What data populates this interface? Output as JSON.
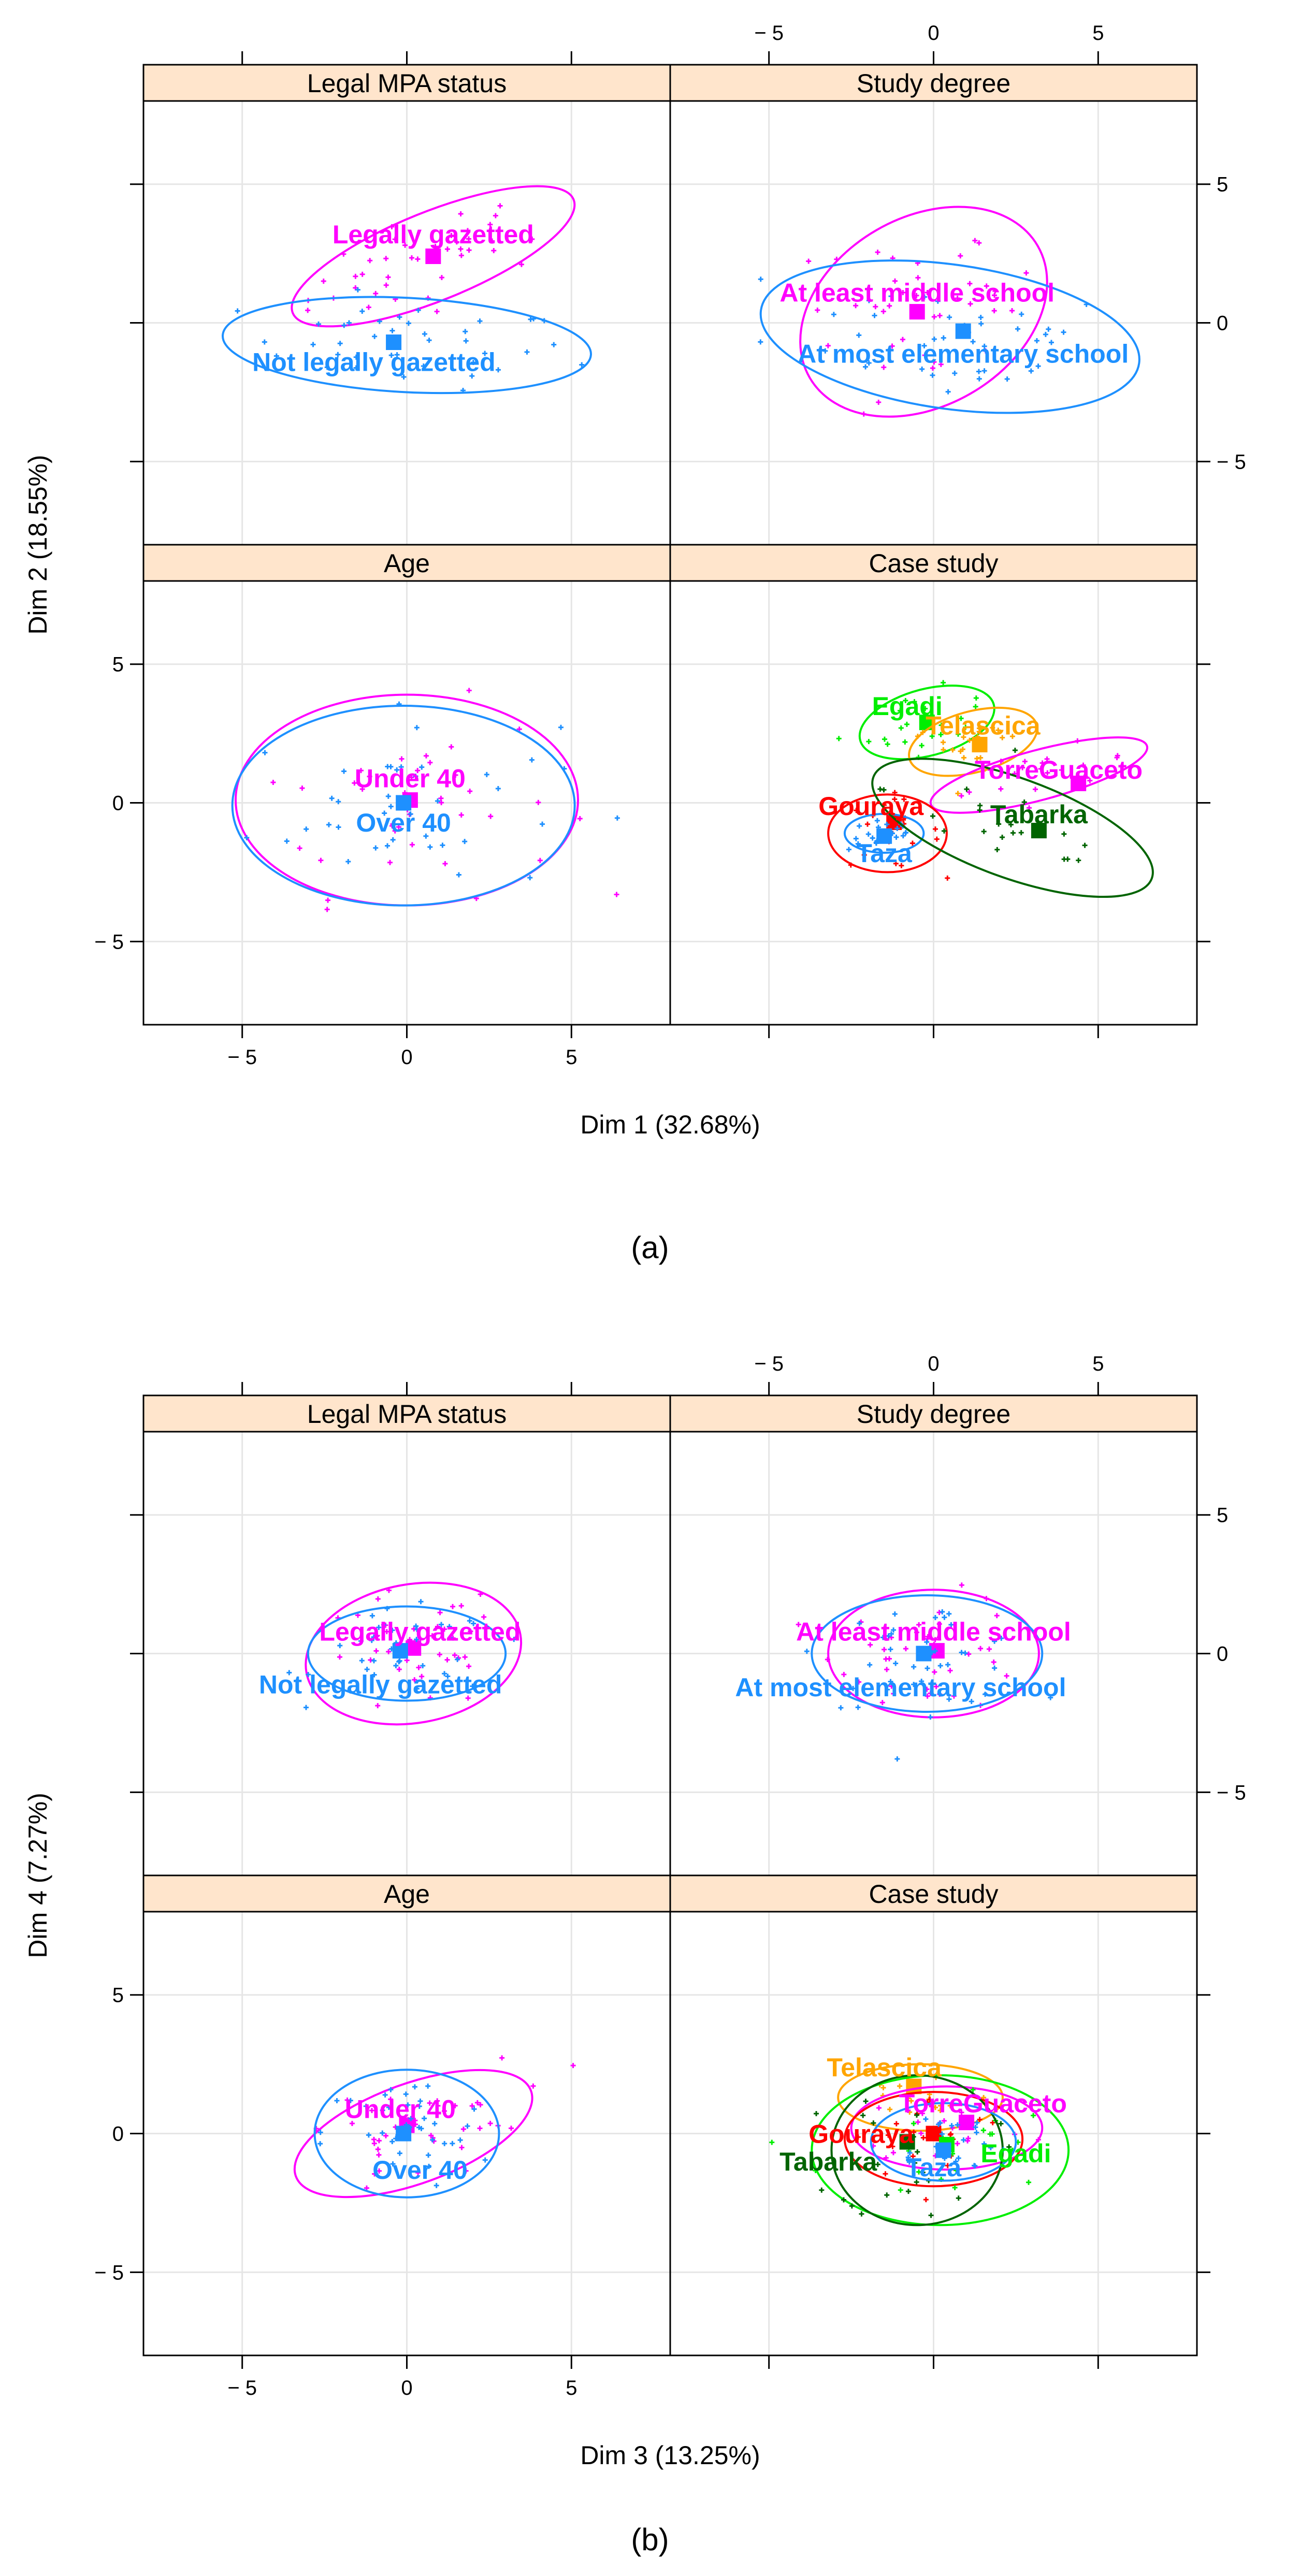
{
  "colors": {
    "blue": "#1E90FF",
    "magenta": "#FF00FF",
    "red": "#FF0000",
    "green": "#00EE00",
    "orange": "#FFA500",
    "darkgreen": "#006400",
    "strip": "#FFE5CC",
    "grid": "#E6E6E6",
    "axis": "#000000"
  },
  "chart_data": [
    {
      "type": "scatter",
      "panel_caption": "(a)",
      "xlabel": "Dim 1 (32.68%)",
      "ylabel": "Dim 2 (18.55%)",
      "xlim": [
        -8,
        8
      ],
      "ylim": [
        -8,
        8
      ],
      "ticks": [
        -5,
        0,
        5
      ],
      "tick_labels": [
        "− 5",
        "0",
        "5"
      ],
      "grid": true,
      "layout": "2x2",
      "facets": [
        {
          "title": "Legal MPA status",
          "position": "top-left",
          "categories": [
            {
              "name": "Legally gazetted",
              "color": "#FF00FF",
              "centroid": [
                0.8,
                2.4
              ],
              "label_at": [
                0.8,
                3.2
              ],
              "ellipse": {
                "cx": 0.8,
                "cy": 2.4,
                "rx": 4.6,
                "ry": 1.6,
                "angle": 22
              }
            },
            {
              "name": "Not legally gazetted",
              "color": "#1E90FF",
              "centroid": [
                -0.4,
                -0.7
              ],
              "label_at": [
                -1.0,
                -1.4
              ],
              "ellipse": {
                "cx": 0.0,
                "cy": -0.8,
                "rx": 5.6,
                "ry": 1.7,
                "angle": -3
              }
            }
          ]
        },
        {
          "title": "Study degree",
          "position": "top-right",
          "categories": [
            {
              "name": "At least middle school",
              "color": "#FF00FF",
              "centroid": [
                -0.5,
                0.4
              ],
              "label_at": [
                -0.5,
                1.1
              ],
              "ellipse": {
                "cx": -0.3,
                "cy": 0.4,
                "rx": 4.0,
                "ry": 3.4,
                "angle": 30
              }
            },
            {
              "name": "At most elementary school",
              "color": "#1E90FF",
              "centroid": [
                0.9,
                -0.3
              ],
              "label_at": [
                0.9,
                -1.1
              ],
              "ellipse": {
                "cx": 0.5,
                "cy": -0.5,
                "rx": 5.8,
                "ry": 2.6,
                "angle": -8
              }
            }
          ]
        },
        {
          "title": "Age",
          "position": "bottom-left",
          "categories": [
            {
              "name": "Under 40",
              "color": "#FF00FF",
              "centroid": [
                0.1,
                0.1
              ],
              "label_at": [
                0.1,
                0.9
              ],
              "ellipse": {
                "cx": 0.0,
                "cy": 0.1,
                "rx": 5.2,
                "ry": 3.8,
                "angle": 0
              }
            },
            {
              "name": "Over 40",
              "color": "#1E90FF",
              "centroid": [
                -0.1,
                0.0
              ],
              "label_at": [
                -0.1,
                -0.7
              ],
              "ellipse": {
                "cx": -0.1,
                "cy": -0.1,
                "rx": 5.2,
                "ry": 3.6,
                "angle": 0
              }
            }
          ]
        },
        {
          "title": "Case study",
          "position": "bottom-right",
          "categories": [
            {
              "name": "Egadi",
              "color": "#00EE00",
              "centroid": [
                -0.2,
                2.9
              ],
              "label_at": [
                -0.8,
                3.5
              ],
              "ellipse": {
                "cx": -0.2,
                "cy": 2.9,
                "rx": 2.1,
                "ry": 1.2,
                "angle": 15
              }
            },
            {
              "name": "Telascica",
              "color": "#FFA500",
              "centroid": [
                1.4,
                2.1
              ],
              "label_at": [
                1.5,
                2.8
              ],
              "ellipse": {
                "cx": 1.2,
                "cy": 2.2,
                "rx": 2.0,
                "ry": 1.1,
                "angle": 15
              }
            },
            {
              "name": "TorreGuaceto",
              "color": "#FF00FF",
              "centroid": [
                4.4,
                0.7
              ],
              "label_at": [
                3.8,
                1.2
              ],
              "ellipse": {
                "cx": 3.2,
                "cy": 1.0,
                "rx": 3.4,
                "ry": 0.9,
                "angle": 15
              }
            },
            {
              "name": "Gouraya",
              "color": "#FF0000",
              "centroid": [
                -1.2,
                -0.7
              ],
              "label_at": [
                -1.9,
                -0.1
              ],
              "ellipse": {
                "cx": -1.4,
                "cy": -1.1,
                "rx": 1.8,
                "ry": 1.4,
                "angle": 0
              }
            },
            {
              "name": "Taza",
              "color": "#1E90FF",
              "centroid": [
                -1.5,
                -1.2
              ],
              "label_at": [
                -1.5,
                -1.8
              ],
              "ellipse": {
                "cx": -1.5,
                "cy": -1.1,
                "rx": 1.2,
                "ry": 0.7,
                "angle": 0
              }
            },
            {
              "name": "Tabarka",
              "color": "#006400",
              "centroid": [
                3.2,
                -1.0
              ],
              "label_at": [
                3.2,
                -0.4
              ],
              "ellipse": {
                "cx": 2.4,
                "cy": -0.9,
                "rx": 4.5,
                "ry": 1.8,
                "angle": -20
              }
            }
          ]
        }
      ]
    },
    {
      "type": "scatter",
      "panel_caption": "(b)",
      "xlabel": "Dim 3 (13.25%)",
      "ylabel": "Dim 4 (7.27%)",
      "xlim": [
        -8,
        8
      ],
      "ylim": [
        -8,
        8
      ],
      "ticks": [
        -5,
        0,
        5
      ],
      "tick_labels": [
        "− 5",
        "0",
        "5"
      ],
      "grid": true,
      "layout": "2x2",
      "facets": [
        {
          "title": "Legal MPA status",
          "position": "top-left",
          "categories": [
            {
              "name": "Legally gazetted",
              "color": "#FF00FF",
              "centroid": [
                0.2,
                0.2
              ],
              "label_at": [
                0.4,
                0.8
              ],
              "ellipse": {
                "cx": 0.2,
                "cy": 0.0,
                "rx": 3.3,
                "ry": 2.5,
                "angle": 10
              }
            },
            {
              "name": "Not legally gazetted",
              "color": "#1E90FF",
              "centroid": [
                -0.2,
                0.1
              ],
              "label_at": [
                -0.8,
                -1.1
              ],
              "ellipse": {
                "cx": 0.0,
                "cy": 0.0,
                "rx": 3.0,
                "ry": 1.7,
                "angle": 0
              }
            }
          ]
        },
        {
          "title": "Study degree",
          "position": "top-right",
          "categories": [
            {
              "name": "At least middle school",
              "color": "#FF00FF",
              "centroid": [
                0.1,
                0.1
              ],
              "label_at": [
                0.0,
                0.8
              ],
              "ellipse": {
                "cx": 0.0,
                "cy": 0.0,
                "rx": 3.2,
                "ry": 2.3,
                "angle": 0
              }
            },
            {
              "name": "At most elementary school",
              "color": "#1E90FF",
              "centroid": [
                -0.3,
                0.0
              ],
              "label_at": [
                -1.0,
                -1.2
              ],
              "ellipse": {
                "cx": -0.2,
                "cy": 0.0,
                "rx": 3.5,
                "ry": 2.1,
                "angle": 0
              }
            }
          ]
        },
        {
          "title": "Age",
          "position": "bottom-left",
          "categories": [
            {
              "name": "Under 40",
              "color": "#FF00FF",
              "centroid": [
                0.0,
                0.3
              ],
              "label_at": [
                -0.2,
                0.9
              ],
              "ellipse": {
                "cx": 0.2,
                "cy": 0.0,
                "rx": 3.8,
                "ry": 1.8,
                "angle": 20
              }
            },
            {
              "name": "Over 40",
              "color": "#1E90FF",
              "centroid": [
                -0.1,
                0.0
              ],
              "label_at": [
                0.4,
                -1.3
              ],
              "ellipse": {
                "cx": 0.0,
                "cy": 0.0,
                "rx": 2.8,
                "ry": 2.3,
                "angle": 0
              }
            }
          ]
        },
        {
          "title": "Case study",
          "position": "bottom-right",
          "categories": [
            {
              "name": "Telascica",
              "color": "#FFA500",
              "centroid": [
                -0.6,
                1.7
              ],
              "label_at": [
                -1.5,
                2.4
              ],
              "ellipse": {
                "cx": -0.4,
                "cy": 1.3,
                "rx": 2.5,
                "ry": 1.2,
                "angle": 0
              }
            },
            {
              "name": "TorreGuaceto",
              "color": "#FF00FF",
              "centroid": [
                1.0,
                0.4
              ],
              "label_at": [
                1.5,
                1.1
              ],
              "ellipse": {
                "cx": 0.4,
                "cy": 0.2,
                "rx": 2.9,
                "ry": 1.5,
                "angle": 0
              }
            },
            {
              "name": "Gouraya",
              "color": "#FF0000",
              "centroid": [
                0.0,
                0.0
              ],
              "label_at": [
                -2.2,
                0.0
              ],
              "ellipse": {
                "cx": 0.0,
                "cy": -0.2,
                "rx": 2.7,
                "ry": 1.7,
                "angle": 0
              }
            },
            {
              "name": "Egadi",
              "color": "#00EE00",
              "centroid": [
                0.4,
                -0.4
              ],
              "label_at": [
                2.5,
                -0.7
              ],
              "ellipse": {
                "cx": 0.2,
                "cy": -0.6,
                "rx": 3.9,
                "ry": 2.7,
                "angle": 0
              }
            },
            {
              "name": "Tabarka",
              "color": "#006400",
              "centroid": [
                -0.8,
                -0.3
              ],
              "label_at": [
                -3.2,
                -1.0
              ],
              "ellipse": {
                "cx": -0.5,
                "cy": -0.6,
                "rx": 2.6,
                "ry": 2.7,
                "angle": 0
              }
            },
            {
              "name": "Taza",
              "color": "#1E90FF",
              "centroid": [
                0.3,
                -0.6
              ],
              "label_at": [
                0.0,
                -1.2
              ],
              "ellipse": {
                "cx": 0.3,
                "cy": -0.3,
                "rx": 2.2,
                "ry": 1.4,
                "angle": 0
              }
            }
          ]
        }
      ]
    }
  ]
}
